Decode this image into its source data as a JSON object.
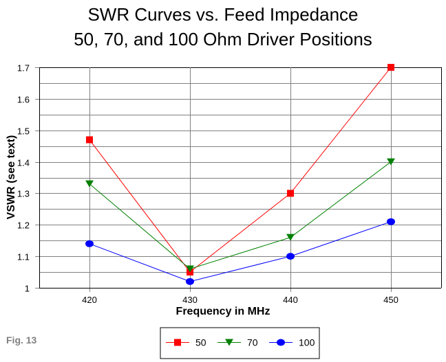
{
  "chart_data": {
    "type": "line",
    "title": "SWR Curves vs. Feed Impedance",
    "subtitle": "50, 70, and 100 Ohm Driver Positions",
    "xlabel": "Frequency in MHz",
    "ylabel": "VSWR (see text)",
    "x": [
      420,
      430,
      440,
      450
    ],
    "xticks": [
      "420",
      "430",
      "440",
      "450"
    ],
    "xlim": [
      415,
      455
    ],
    "ylim": [
      1.0,
      1.7
    ],
    "yticks": [
      "1",
      "1.1",
      "1.2",
      "1.3",
      "1.4",
      "1.5",
      "1.6",
      "1.7"
    ],
    "yminor_step": 0.05,
    "grid": true,
    "legend_position": "bottom-center",
    "series": [
      {
        "name": "50",
        "values": [
          1.47,
          1.05,
          1.3,
          1.7
        ],
        "color": "#ff0000",
        "marker": "square"
      },
      {
        "name": "70",
        "values": [
          1.33,
          1.06,
          1.16,
          1.4
        ],
        "color": "#008000",
        "marker": "triangle-down"
      },
      {
        "name": "100",
        "values": [
          1.14,
          1.02,
          1.1,
          1.21
        ],
        "color": "#0000ff",
        "marker": "circle"
      }
    ]
  },
  "figure_label": "Fig. 13"
}
